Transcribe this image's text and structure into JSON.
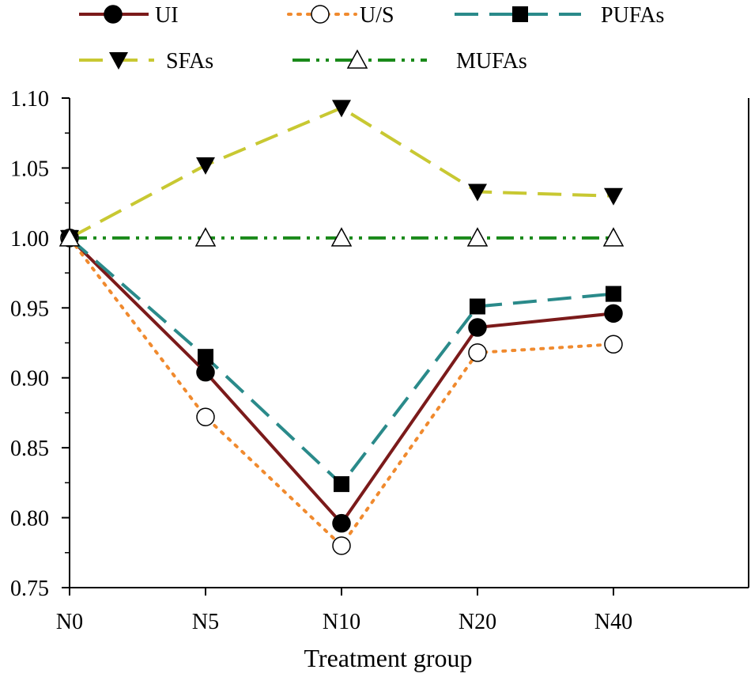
{
  "chart_data": {
    "type": "line",
    "title": "",
    "xlabel": "Treatment group",
    "ylabel": "",
    "categories": [
      "N0",
      "N5",
      "N10",
      "N20",
      "N40"
    ],
    "ylim": [
      0.75,
      1.1
    ],
    "yticks": [
      "0.75",
      "0.80",
      "0.85",
      "0.90",
      "0.95",
      "1.00",
      "1.05",
      "1.10"
    ],
    "legend_position": "top",
    "series": [
      {
        "name": "UI",
        "values": [
          1.0,
          0.904,
          0.796,
          0.936,
          0.946
        ],
        "color": "#7b1a1a",
        "marker": "filled-circle",
        "line": "solid"
      },
      {
        "name": "U/S",
        "values": [
          1.0,
          0.872,
          0.78,
          0.918,
          0.924
        ],
        "color": "#f08a2e",
        "marker": "open-circle",
        "line": "dotted"
      },
      {
        "name": "PUFAs",
        "values": [
          1.0,
          0.915,
          0.824,
          0.951,
          0.96
        ],
        "color": "#2a8a8a",
        "marker": "filled-square",
        "line": "dashed"
      },
      {
        "name": "SFAs",
        "values": [
          1.0,
          1.052,
          1.093,
          1.033,
          1.03
        ],
        "color": "#c8c832",
        "marker": "filled-triangle-down",
        "line": "dashed"
      },
      {
        "name": "MUFAs",
        "values": [
          1.0,
          1.0,
          1.0,
          1.0,
          1.0
        ],
        "color": "#1a8a1a",
        "marker": "open-triangle-up",
        "line": "dash-dot-dot"
      }
    ]
  }
}
